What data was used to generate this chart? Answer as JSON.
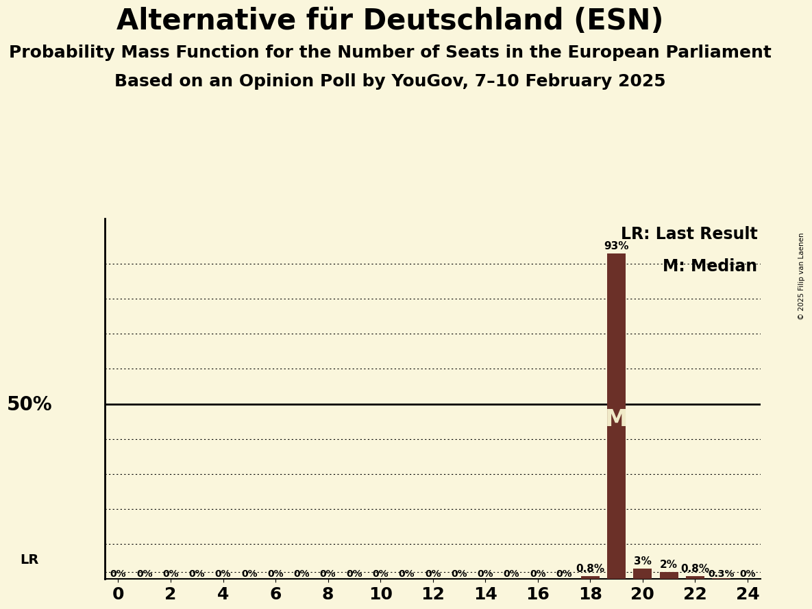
{
  "title": "Alternative für Deutschland (ESN)",
  "subtitle1": "Probability Mass Function for the Number of Seats in the European Parliament",
  "subtitle2": "Based on an Opinion Poll by YouGov, 7–10 February 2025",
  "copyright": "© 2025 Filip van Laenen",
  "background_color": "#FAF6DC",
  "bar_color": "#6B3028",
  "x_min": -0.5,
  "x_max": 24.5,
  "y_min": 0,
  "y_max": 100,
  "y_50_line": 50,
  "lr_y": 2.0,
  "median_seat": 19,
  "seats": [
    0,
    1,
    2,
    3,
    4,
    5,
    6,
    7,
    8,
    9,
    10,
    11,
    12,
    13,
    14,
    15,
    16,
    17,
    18,
    19,
    20,
    21,
    22,
    23,
    24
  ],
  "probabilities": [
    0,
    0,
    0,
    0,
    0,
    0,
    0,
    0,
    0,
    0,
    0,
    0,
    0,
    0,
    0,
    0,
    0,
    0,
    0.8,
    93,
    3,
    2,
    0.8,
    0.3,
    0
  ],
  "bar_labels": [
    "0%",
    "0%",
    "0%",
    "0%",
    "0%",
    "0%",
    "0%",
    "0%",
    "0%",
    "0%",
    "0%",
    "0%",
    "0%",
    "0%",
    "0%",
    "0%",
    "0%",
    "0%",
    "0.8%",
    "93%",
    "3%",
    "2%",
    "0.8%",
    "0.3%",
    "0%"
  ],
  "x_ticks": [
    0,
    2,
    4,
    6,
    8,
    10,
    12,
    14,
    16,
    18,
    20,
    22,
    24
  ],
  "dotted_y_values": [
    10,
    20,
    30,
    40,
    60,
    70,
    80,
    90
  ],
  "title_fontsize": 30,
  "subtitle_fontsize": 18,
  "label_fontsize": 11,
  "tick_fontsize": 18,
  "legend_fontsize": 17,
  "fifty_label_fontsize": 20,
  "lr_label_fontsize": 14,
  "m_fontsize": 24
}
